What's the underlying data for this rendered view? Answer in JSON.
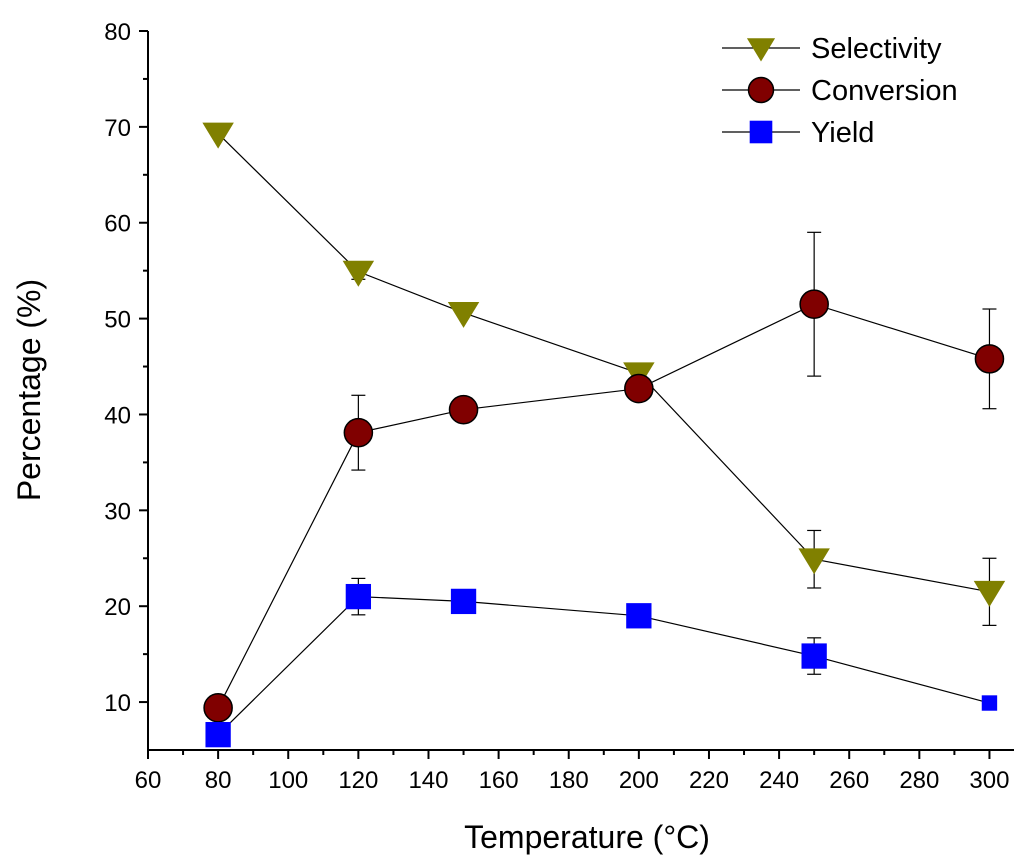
{
  "chart_data": {
    "type": "line",
    "title": "",
    "xlabel": "Temperature (°C)",
    "ylabel": "Percentage (%)",
    "xlim": [
      60,
      307
    ],
    "ylim": [
      5,
      80
    ],
    "xticks": [
      "60",
      "80",
      "100",
      "120",
      "140",
      "160",
      "180",
      "200",
      "220",
      "240",
      "260",
      "280",
      "300"
    ],
    "yticks": [
      "10",
      "20",
      "30",
      "40",
      "50",
      "60",
      "70",
      "80"
    ],
    "grid": false,
    "legend": "top-right",
    "x": [
      80,
      120,
      150,
      200,
      250,
      300
    ],
    "series": [
      {
        "name": "Selectivity",
        "marker": "triangle-down",
        "color": "#808000",
        "values": [
          69.3,
          54.9,
          50.6,
          44.3,
          24.9,
          21.5
        ],
        "error": [
          null,
          0.8,
          null,
          null,
          3.0,
          3.5
        ]
      },
      {
        "name": "Conversion",
        "marker": "circle",
        "color": "#800000",
        "values": [
          9.4,
          38.1,
          40.5,
          42.7,
          51.5,
          45.8
        ],
        "error": [
          null,
          3.9,
          null,
          null,
          7.5,
          5.2
        ]
      },
      {
        "name": "Yield",
        "marker": "square",
        "color": "#0000ff",
        "values": [
          6.6,
          21.0,
          20.5,
          19.0,
          14.8,
          9.9
        ],
        "error": [
          null,
          1.9,
          null,
          null,
          1.9,
          0.7
        ]
      }
    ]
  }
}
